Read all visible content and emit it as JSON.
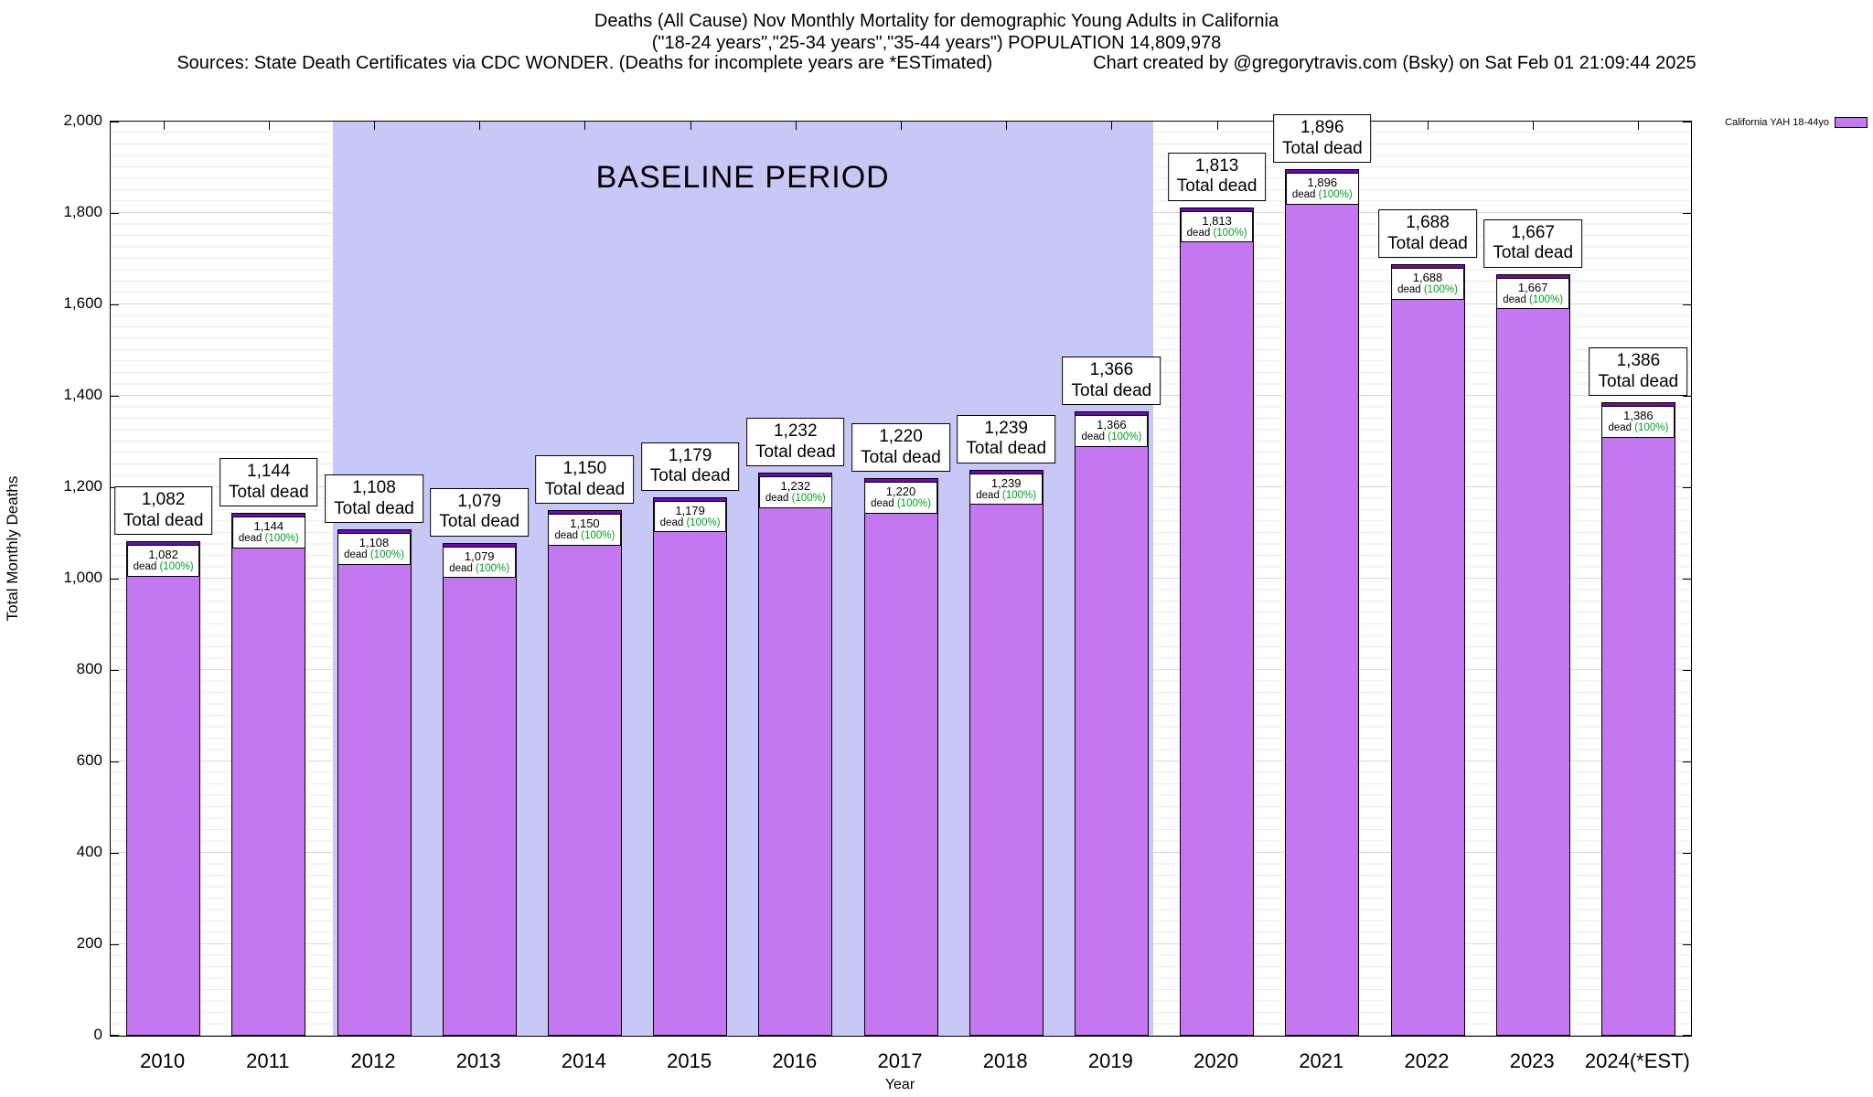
{
  "title": {
    "line1": "Deaths (All Cause) Nov Monthly Mortality for demographic Young Adults in California",
    "line2": "(\"18-24 years\",\"25-34 years\",\"35-44 years\") POPULATION 14,809,978",
    "line3_left": "Sources: State Death Certificates via CDC WONDER. (Deaths for incomplete years are *ESTimated)",
    "line3_right": "Chart created by @gregorytravis.com (Bsky) on Sat Feb 01 21:09:44 2025"
  },
  "legend": {
    "label": "California YAH 18-44yo",
    "swatch_color": "#c478ef"
  },
  "axes": {
    "ylabel": "Total Monthly Deaths",
    "xlabel": "Year",
    "yticks": [
      0,
      200,
      400,
      600,
      800,
      1000,
      1200,
      1400,
      1600,
      1800,
      2000
    ]
  },
  "baseline": {
    "label": "BASELINE PERIOD",
    "start_year": "2012",
    "end_year": "2019"
  },
  "chart_data": {
    "type": "bar",
    "title": "Deaths (All Cause) Nov Monthly Mortality for demographic Young Adults in California",
    "xlabel": "Year",
    "ylabel": "Total Monthly Deaths",
    "ylim": [
      0,
      2000
    ],
    "grid": "horizontal",
    "legend_position": "top-right",
    "legend_entries": [
      "California YAH 18-44yo"
    ],
    "categories": [
      "2010",
      "2011",
      "2012",
      "2013",
      "2014",
      "2015",
      "2016",
      "2017",
      "2018",
      "2019",
      "2020",
      "2021",
      "2022",
      "2023",
      "2024(*EST)"
    ],
    "values": [
      1082,
      1144,
      1108,
      1079,
      1150,
      1179,
      1232,
      1220,
      1239,
      1366,
      1813,
      1896,
      1688,
      1667,
      1386
    ],
    "total_label_suffix": "Total dead",
    "inner_label_word": "dead",
    "inner_label_pct": "(100%)",
    "annotation": "BASELINE PERIOD",
    "colors": {
      "bar": "#c478ef",
      "bar_cap": "#6a0dad",
      "baseline_shade": "#c8c8f6"
    }
  }
}
